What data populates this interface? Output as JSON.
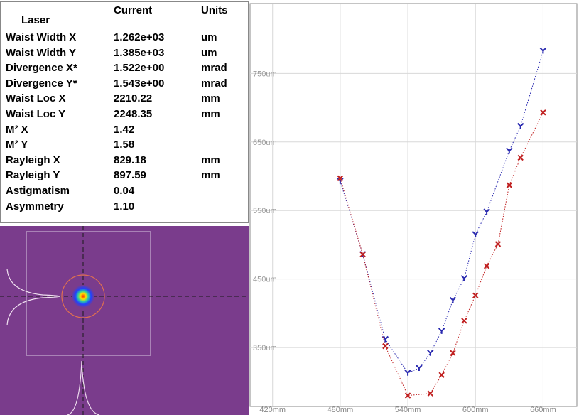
{
  "table": {
    "columns": [
      "Current",
      "Units"
    ],
    "group": "Laser",
    "rows": [
      [
        "Waist Width X",
        "1.262e+03",
        "um"
      ],
      [
        "Waist Width Y",
        "1.385e+03",
        "um"
      ],
      [
        "Divergence X*",
        "1.522e+00",
        "mrad"
      ],
      [
        "Divergence Y*",
        "1.543e+00",
        "mrad"
      ],
      [
        "Waist Loc X",
        "2210.22",
        "mm"
      ],
      [
        "Waist Loc Y",
        "2248.35",
        "mm"
      ],
      [
        "M² X",
        "1.42"
      ],
      [
        "M² Y",
        "1.58"
      ],
      [
        "Rayleigh X",
        "829.18",
        "mm"
      ],
      [
        "Rayleigh Y",
        "897.59",
        "mm"
      ],
      [
        "Astigmatism",
        "0.04"
      ],
      [
        "Asymmetry",
        "1.10"
      ]
    ]
  },
  "chart_data": {
    "type": "scatter",
    "xlim": [
      400,
      690
    ],
    "ylim": [
      264,
      852
    ],
    "xticks": [
      {
        "value": 420,
        "label": "420mm"
      },
      {
        "value": 480,
        "label": "480mm"
      },
      {
        "value": 540,
        "label": "540mm"
      },
      {
        "value": 600,
        "label": "600mm"
      },
      {
        "value": 660,
        "label": "660mm"
      }
    ],
    "yticks": [
      {
        "value": 350,
        "label": "350um"
      },
      {
        "value": 450,
        "label": "450um"
      },
      {
        "value": 550,
        "label": "550um"
      },
      {
        "value": 650,
        "label": "650um"
      },
      {
        "value": 750,
        "label": "750um"
      }
    ],
    "grid": true,
    "series": [
      {
        "marker": "Y",
        "color": "#2a2ab0",
        "x": [
          480,
          500,
          520,
          540,
          550,
          560,
          570,
          580,
          590,
          600,
          610,
          630,
          640,
          660
        ],
        "values": [
          593,
          486,
          362,
          313,
          320,
          342,
          374,
          419,
          451,
          515,
          548,
          637,
          673,
          783
        ]
      },
      {
        "marker": "x",
        "color": "#c02020",
        "x": [
          480,
          500,
          520,
          540,
          560,
          570,
          580,
          590,
          600,
          610,
          620,
          630,
          640,
          660
        ],
        "values": [
          597,
          486,
          352,
          280,
          283,
          310,
          342,
          389,
          426,
          469,
          501,
          587,
          627,
          693
        ]
      }
    ]
  }
}
